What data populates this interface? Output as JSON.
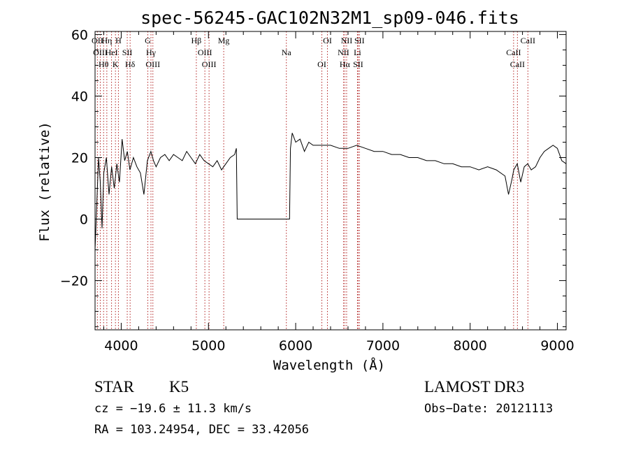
{
  "chart_data": {
    "type": "line",
    "title": "spec-56245-GAC102N32M1_sp09-046.fits",
    "xlabel": "Wavelength (Å)",
    "ylabel": "Flux (relative)",
    "xlim": [
      3700,
      9100
    ],
    "ylim": [
      -36,
      61
    ],
    "xticks": [
      4000,
      5000,
      6000,
      7000,
      8000,
      9000
    ],
    "yticks": [
      -20,
      0,
      20,
      40,
      60
    ],
    "grid": false,
    "series": [
      {
        "x": [
          3700,
          3720,
          3740,
          3760,
          3780,
          3800,
          3830,
          3860,
          3890,
          3920,
          3950,
          3980,
          4010,
          4040,
          4070,
          4100,
          4140,
          4180,
          4220,
          4260,
          4300,
          4340,
          4370,
          4400,
          4450,
          4500,
          4550,
          4600,
          4650,
          4700,
          4750,
          4800,
          4850,
          4900,
          4950,
          5000,
          5050,
          5100,
          5150,
          5200,
          5250,
          5300,
          5320,
          5330,
          5340,
          5920,
          5930,
          5940,
          5960,
          6000,
          6050,
          6100,
          6150,
          6200,
          6300,
          6400,
          6500,
          6600,
          6700,
          6800,
          6900,
          7000,
          7100,
          7200,
          7300,
          7400,
          7500,
          7600,
          7700,
          7800,
          7900,
          8000,
          8100,
          8200,
          8300,
          8400,
          8440,
          8480,
          8500,
          8540,
          8580,
          8620,
          8660,
          8700,
          8750,
          8800,
          8850,
          8900,
          8950,
          9000,
          9050,
          9100
        ],
        "y": [
          -10,
          5,
          20,
          12,
          -3,
          15,
          20,
          8,
          17,
          10,
          18,
          12,
          26,
          19,
          22,
          16,
          20,
          17,
          15,
          8,
          19,
          22,
          19,
          17,
          20,
          21,
          19,
          21,
          20,
          19,
          22,
          20,
          18,
          21,
          19,
          18,
          17,
          19,
          16,
          18,
          20,
          21,
          23,
          0,
          0,
          0,
          0,
          23,
          28,
          25,
          26,
          22,
          25,
          24,
          24,
          24,
          23,
          23,
          24,
          23,
          22,
          22,
          21,
          21,
          20,
          20,
          19,
          19,
          18,
          18,
          17,
          17,
          16,
          17,
          16,
          14,
          8,
          13,
          16,
          18,
          12,
          17,
          18,
          16,
          17,
          20,
          22,
          23,
          24,
          23,
          19,
          18
        ]
      }
    ],
    "lines": [
      {
        "label": "Hθ",
        "x": 3798
      },
      {
        "label": "OII",
        "x": 3727
      },
      {
        "label": "OIII",
        "x": 3760
      },
      {
        "label": "Hη",
        "x": 3835
      },
      {
        "label": "HeI",
        "x": 3889
      },
      {
        "label": "K",
        "x": 3934
      },
      {
        "label": "H",
        "x": 3968
      },
      {
        "label": "SII",
        "x": 4069
      },
      {
        "label": "Hδ",
        "x": 4102
      },
      {
        "label": "G",
        "x": 4305
      },
      {
        "label": "OIII",
        "x": 4363
      },
      {
        "label": "Hγ",
        "x": 4341
      },
      {
        "label": "Hβ",
        "x": 4861
      },
      {
        "label": "OIII",
        "x": 4959
      },
      {
        "label": "OIII",
        "x": 5007
      },
      {
        "label": "Mg",
        "x": 5175
      },
      {
        "label": "Na",
        "x": 5893
      },
      {
        "label": "OI",
        "x": 6300
      },
      {
        "label": "OI",
        "x": 6364
      },
      {
        "label": "Hα",
        "x": 6563
      },
      {
        "label": "NII",
        "x": 6548
      },
      {
        "label": "NII",
        "x": 6584
      },
      {
        "label": "Li",
        "x": 6708
      },
      {
        "label": "SII",
        "x": 6716
      },
      {
        "label": "SII",
        "x": 6731
      },
      {
        "label": "CaII",
        "x": 8498
      },
      {
        "label": "CaII",
        "x": 8542
      },
      {
        "label": "CaII",
        "x": 8662
      }
    ],
    "line_color": "#000000",
    "marker_color": "#b22222"
  },
  "info": {
    "class": "STAR",
    "subclass": "K5",
    "survey": "LAMOST DR3",
    "cz": "cz = −19.6 ± 11.3 km/s",
    "obs_date": "Obs−Date: 20121113",
    "coords": "RA = 103.24954, DEC =  33.42056"
  }
}
